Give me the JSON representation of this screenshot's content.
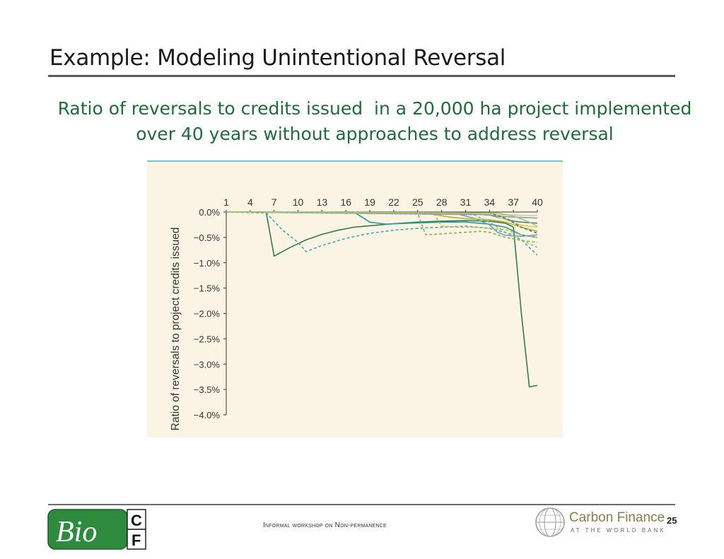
{
  "slide": {
    "title": "Example: Modeling Unintentional Reversal",
    "subtitle_line1": "Ratio of reversals to credits issued  in a 20,000 ha project implemented",
    "subtitle_line2": "over 40 years without approaches to address reversal",
    "footer_text": "Informal workshop on Non-permanence",
    "page_number": "25"
  },
  "logos": {
    "bio_text": "Bio",
    "bio_c": "C",
    "bio_f": "F",
    "carbon_finance": "Carbon Finance",
    "carbon_finance_sub": "AT THE WORLD BANK"
  },
  "colors": {
    "title_text": "#1a1a1a",
    "subtitle_text": "#1f6b3a",
    "chart_background": "#fbf4e4",
    "chart_top_rule": "#3fb8c8",
    "bio_green": "#2e8b3e"
  },
  "chart_data": {
    "type": "line",
    "title": "",
    "xlabel": "",
    "ylabel": "Ratio of reversals to project credits issued",
    "xlim": [
      1,
      40
    ],
    "ylim": [
      -4.0,
      0.0
    ],
    "x_ticks": [
      1,
      4,
      7,
      10,
      13,
      16,
      19,
      22,
      25,
      28,
      31,
      34,
      37,
      40
    ],
    "y_ticks": [
      0.0,
      -0.5,
      -1.0,
      -1.5,
      -2.0,
      -2.5,
      -3.0,
      -3.5,
      -4.0
    ],
    "y_tick_labels": [
      "0.0%",
      "−0.5%",
      "−1.0%",
      "−1.5%",
      "−2.0%",
      "−2.5%",
      "−3.0%",
      "−3.5%",
      "−4.0%"
    ],
    "x_axis_position": "top",
    "grid": false,
    "legend": "none",
    "series": [
      {
        "color": "#2f7d4f",
        "dash": "solid",
        "points": [
          [
            1,
            0
          ],
          [
            6,
            0
          ],
          [
            7,
            -0.87
          ],
          [
            9,
            -0.7
          ],
          [
            11,
            -0.55
          ],
          [
            13,
            -0.44
          ],
          [
            15,
            -0.36
          ],
          [
            17,
            -0.3
          ],
          [
            19,
            -0.27
          ],
          [
            22,
            -0.23
          ],
          [
            25,
            -0.2
          ],
          [
            28,
            -0.18
          ],
          [
            31,
            -0.17
          ],
          [
            34,
            -0.18
          ],
          [
            36,
            -0.22
          ],
          [
            37,
            -0.3
          ],
          [
            38,
            -2.0
          ],
          [
            39,
            -3.45
          ],
          [
            40,
            -3.42
          ]
        ]
      },
      {
        "color": "#3ea8b0",
        "dash": "dashed",
        "points": [
          [
            1,
            0
          ],
          [
            6,
            -0.02
          ],
          [
            8,
            -0.35
          ],
          [
            10,
            -0.6
          ],
          [
            11,
            -0.78
          ],
          [
            13,
            -0.66
          ],
          [
            16,
            -0.52
          ],
          [
            19,
            -0.42
          ],
          [
            22,
            -0.36
          ],
          [
            25,
            -0.32
          ],
          [
            28,
            -0.3
          ],
          [
            31,
            -0.28
          ],
          [
            34,
            -0.32
          ],
          [
            37,
            -0.45
          ],
          [
            38,
            -0.55
          ],
          [
            40,
            -0.85
          ]
        ]
      },
      {
        "color": "#2a9a9a",
        "dash": "solid",
        "points": [
          [
            1,
            0
          ],
          [
            17,
            0
          ],
          [
            19,
            -0.2
          ],
          [
            21,
            -0.24
          ],
          [
            24,
            -0.22
          ],
          [
            28,
            -0.2
          ],
          [
            31,
            -0.2
          ],
          [
            34,
            -0.24
          ],
          [
            36,
            -0.3
          ],
          [
            38,
            -0.45
          ],
          [
            40,
            -0.5
          ]
        ]
      },
      {
        "color": "#8ab04a",
        "dash": "dashed",
        "points": [
          [
            1,
            0
          ],
          [
            25,
            -0.03
          ],
          [
            26,
            -0.45
          ],
          [
            28,
            -0.43
          ],
          [
            31,
            -0.4
          ],
          [
            33,
            -0.38
          ],
          [
            34,
            -0.4
          ],
          [
            36,
            -0.5
          ],
          [
            38,
            -0.56
          ],
          [
            40,
            -0.6
          ]
        ]
      },
      {
        "color": "#c9b84a",
        "dash": "dashed",
        "points": [
          [
            1,
            0
          ],
          [
            27,
            -0.02
          ],
          [
            28,
            -0.28
          ],
          [
            30,
            -0.3
          ],
          [
            32,
            -0.3
          ],
          [
            34,
            -0.32
          ],
          [
            36,
            -0.35
          ],
          [
            38,
            -0.45
          ],
          [
            40,
            -0.5
          ]
        ]
      },
      {
        "color": "#6aa0c8",
        "dash": "solid",
        "points": [
          [
            1,
            0
          ],
          [
            30,
            -0.04
          ],
          [
            32,
            -0.12
          ],
          [
            34,
            -0.25
          ],
          [
            35,
            -0.4
          ],
          [
            36,
            -0.46
          ],
          [
            38,
            -0.48
          ],
          [
            40,
            -0.45
          ]
        ]
      },
      {
        "color": "#b8b030",
        "dash": "solid",
        "points": [
          [
            1,
            0
          ],
          [
            26,
            -0.02
          ],
          [
            29,
            -0.1
          ],
          [
            31,
            -0.13
          ],
          [
            34,
            -0.15
          ],
          [
            36,
            -0.2
          ],
          [
            38,
            -0.3
          ],
          [
            40,
            -0.38
          ]
        ]
      },
      {
        "color": "#7fbf6f",
        "dash": "dashed",
        "points": [
          [
            1,
            0
          ],
          [
            32,
            -0.05
          ],
          [
            34,
            -0.2
          ],
          [
            36,
            -0.4
          ],
          [
            38,
            -0.55
          ],
          [
            40,
            -0.7
          ]
        ]
      },
      {
        "color": "#4b7f9a",
        "dash": "solid",
        "points": [
          [
            1,
            0
          ],
          [
            33,
            -0.02
          ],
          [
            35,
            -0.1
          ],
          [
            37,
            -0.18
          ],
          [
            38,
            -0.2
          ],
          [
            40,
            -0.22
          ]
        ]
      },
      {
        "color": "#e0c860",
        "dash": "solid",
        "points": [
          [
            1,
            0
          ],
          [
            34,
            -0.03
          ],
          [
            36,
            -0.15
          ],
          [
            38,
            -0.26
          ],
          [
            40,
            -0.3
          ]
        ]
      },
      {
        "color": "#9a9a9a",
        "dash": "solid",
        "points": [
          [
            1,
            0
          ],
          [
            33,
            -0.05
          ],
          [
            35,
            -0.08
          ],
          [
            37,
            -0.1
          ],
          [
            40,
            -0.12
          ]
        ]
      },
      {
        "color": "#c8c8c8",
        "dash": "solid",
        "points": [
          [
            1,
            0
          ],
          [
            32,
            -0.02
          ],
          [
            35,
            -0.05
          ],
          [
            37,
            -0.06
          ],
          [
            40,
            -0.07
          ]
        ]
      },
      {
        "color": "#3f7c6a",
        "dash": "dashed",
        "points": [
          [
            1,
            0
          ],
          [
            34,
            -0.02
          ],
          [
            36,
            -0.12
          ],
          [
            38,
            -0.3
          ],
          [
            40,
            -0.42
          ]
        ]
      },
      {
        "color": "#a8c870",
        "dash": "solid",
        "points": [
          [
            1,
            0
          ],
          [
            35,
            -0.02
          ],
          [
            37,
            -0.08
          ],
          [
            39,
            -0.2
          ],
          [
            40,
            -0.28
          ]
        ]
      }
    ]
  }
}
